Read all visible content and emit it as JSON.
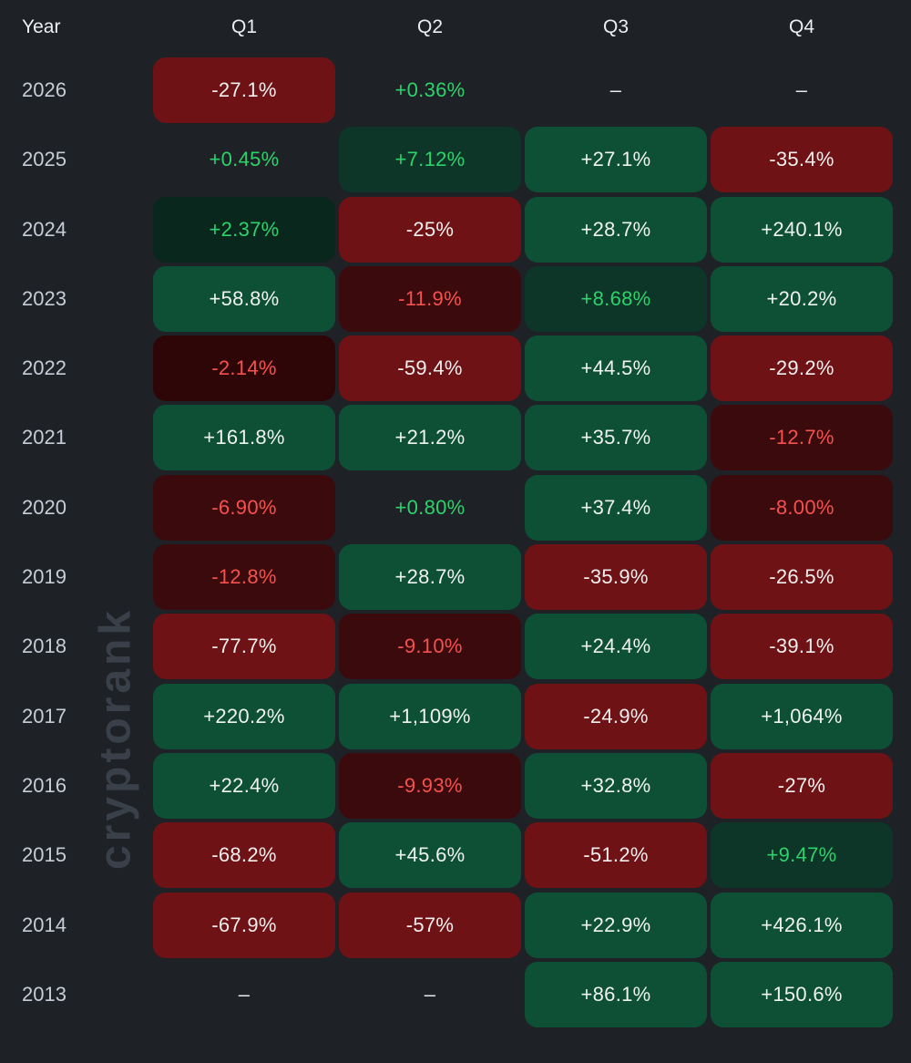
{
  "page": {
    "background": "#1e2126",
    "watermark": "cryptorank"
  },
  "colors": {
    "positive_strong_bg": "#0d5036",
    "positive_dim_bg": "#0d3528",
    "positive_dimmer_bg": "#0a271e",
    "positive_text": "#2cd36a",
    "negative_strong_bg": "#6f1215",
    "negative_dim_bg": "#3a0a0c",
    "negative_dimmer_bg": "#2e0607",
    "negative_text": "#f6514f",
    "cell_white_text": "#f0f2f1",
    "year_text": "#c7cdd7",
    "header_text": "#eceef1",
    "watermark_text": "#3a4049"
  },
  "table": {
    "header": {
      "year_label": "Year",
      "quarters": [
        "Q1",
        "Q2",
        "Q3",
        "Q4"
      ]
    },
    "rows": [
      {
        "year": "2026",
        "cells": [
          {
            "value": "-27.1%",
            "style": "neg-strong"
          },
          {
            "value": "+0.36%",
            "style": "pos-flat"
          },
          {
            "value": "–",
            "style": "empty"
          },
          {
            "value": "–",
            "style": "empty"
          }
        ]
      },
      {
        "year": "2025",
        "cells": [
          {
            "value": "+0.45%",
            "style": "pos-flat"
          },
          {
            "value": "+7.12%",
            "style": "pos-dim"
          },
          {
            "value": "+27.1%",
            "style": "pos-strong"
          },
          {
            "value": "-35.4%",
            "style": "neg-strong"
          }
        ]
      },
      {
        "year": "2024",
        "cells": [
          {
            "value": "+2.37%",
            "style": "pos-dimmer"
          },
          {
            "value": "-25%",
            "style": "neg-strong"
          },
          {
            "value": "+28.7%",
            "style": "pos-strong"
          },
          {
            "value": "+240.1%",
            "style": "pos-strong"
          }
        ]
      },
      {
        "year": "2023",
        "cells": [
          {
            "value": "+58.8%",
            "style": "pos-strong"
          },
          {
            "value": "-11.9%",
            "style": "neg-dim"
          },
          {
            "value": "+8.68%",
            "style": "pos-dim"
          },
          {
            "value": "+20.2%",
            "style": "pos-strong"
          }
        ]
      },
      {
        "year": "2022",
        "cells": [
          {
            "value": "-2.14%",
            "style": "neg-dimmer"
          },
          {
            "value": "-59.4%",
            "style": "neg-strong"
          },
          {
            "value": "+44.5%",
            "style": "pos-strong"
          },
          {
            "value": "-29.2%",
            "style": "neg-strong"
          }
        ]
      },
      {
        "year": "2021",
        "cells": [
          {
            "value": "+161.8%",
            "style": "pos-strong"
          },
          {
            "value": "+21.2%",
            "style": "pos-strong"
          },
          {
            "value": "+35.7%",
            "style": "pos-strong"
          },
          {
            "value": "-12.7%",
            "style": "neg-dim"
          }
        ]
      },
      {
        "year": "2020",
        "cells": [
          {
            "value": "-6.90%",
            "style": "neg-dim"
          },
          {
            "value": "+0.80%",
            "style": "pos-flat"
          },
          {
            "value": "+37.4%",
            "style": "pos-strong"
          },
          {
            "value": "-8.00%",
            "style": "neg-dim"
          }
        ]
      },
      {
        "year": "2019",
        "cells": [
          {
            "value": "-12.8%",
            "style": "neg-dim"
          },
          {
            "value": "+28.7%",
            "style": "pos-strong"
          },
          {
            "value": "-35.9%",
            "style": "neg-strong"
          },
          {
            "value": "-26.5%",
            "style": "neg-strong"
          }
        ]
      },
      {
        "year": "2018",
        "cells": [
          {
            "value": "-77.7%",
            "style": "neg-strong"
          },
          {
            "value": "-9.10%",
            "style": "neg-dim"
          },
          {
            "value": "+24.4%",
            "style": "pos-strong"
          },
          {
            "value": "-39.1%",
            "style": "neg-strong"
          }
        ]
      },
      {
        "year": "2017",
        "cells": [
          {
            "value": "+220.2%",
            "style": "pos-strong"
          },
          {
            "value": "+1,109%",
            "style": "pos-strong"
          },
          {
            "value": "-24.9%",
            "style": "neg-strong"
          },
          {
            "value": "+1,064%",
            "style": "pos-strong"
          }
        ]
      },
      {
        "year": "2016",
        "cells": [
          {
            "value": "+22.4%",
            "style": "pos-strong"
          },
          {
            "value": "-9.93%",
            "style": "neg-dim"
          },
          {
            "value": "+32.8%",
            "style": "pos-strong"
          },
          {
            "value": "-27%",
            "style": "neg-strong"
          }
        ]
      },
      {
        "year": "2015",
        "cells": [
          {
            "value": "-68.2%",
            "style": "neg-strong"
          },
          {
            "value": "+45.6%",
            "style": "pos-strong"
          },
          {
            "value": "-51.2%",
            "style": "neg-strong"
          },
          {
            "value": "+9.47%",
            "style": "pos-dim"
          }
        ]
      },
      {
        "year": "2014",
        "cells": [
          {
            "value": "-67.9%",
            "style": "neg-strong"
          },
          {
            "value": "-57%",
            "style": "neg-strong"
          },
          {
            "value": "+22.9%",
            "style": "pos-strong"
          },
          {
            "value": "+426.1%",
            "style": "pos-strong"
          }
        ]
      },
      {
        "year": "2013",
        "cells": [
          {
            "value": "–",
            "style": "empty"
          },
          {
            "value": "–",
            "style": "empty"
          },
          {
            "value": "+86.1%",
            "style": "pos-strong"
          },
          {
            "value": "+150.6%",
            "style": "pos-strong"
          }
        ]
      }
    ]
  },
  "chart_data": {
    "type": "heatmap",
    "title": "",
    "xlabel": "",
    "ylabel": "Year",
    "x_categories": [
      "Q1",
      "Q2",
      "Q3",
      "Q4"
    ],
    "y_categories": [
      "2026",
      "2025",
      "2024",
      "2023",
      "2022",
      "2021",
      "2020",
      "2019",
      "2018",
      "2017",
      "2016",
      "2015",
      "2014",
      "2013"
    ],
    "values_percent": [
      [
        -27.1,
        0.36,
        null,
        null
      ],
      [
        0.45,
        7.12,
        27.1,
        -35.4
      ],
      [
        2.37,
        -25,
        28.7,
        240.1
      ],
      [
        58.8,
        -11.9,
        8.68,
        20.2
      ],
      [
        -2.14,
        -59.4,
        44.5,
        -29.2
      ],
      [
        161.8,
        21.2,
        35.7,
        -12.7
      ],
      [
        -6.9,
        0.8,
        37.4,
        -8.0
      ],
      [
        -12.8,
        28.7,
        -35.9,
        -26.5
      ],
      [
        -77.7,
        -9.1,
        24.4,
        -39.1
      ],
      [
        220.2,
        1109,
        -24.9,
        1064
      ],
      [
        22.4,
        -9.93,
        32.8,
        -27
      ],
      [
        -68.2,
        45.6,
        -51.2,
        9.47
      ],
      [
        -67.9,
        -57,
        22.9,
        426.1
      ],
      [
        null,
        null,
        86.1,
        150.6
      ]
    ],
    "legend": "none",
    "grid": false,
    "color_scheme": "green = positive return, red = negative return; brightness scales with magnitude"
  }
}
